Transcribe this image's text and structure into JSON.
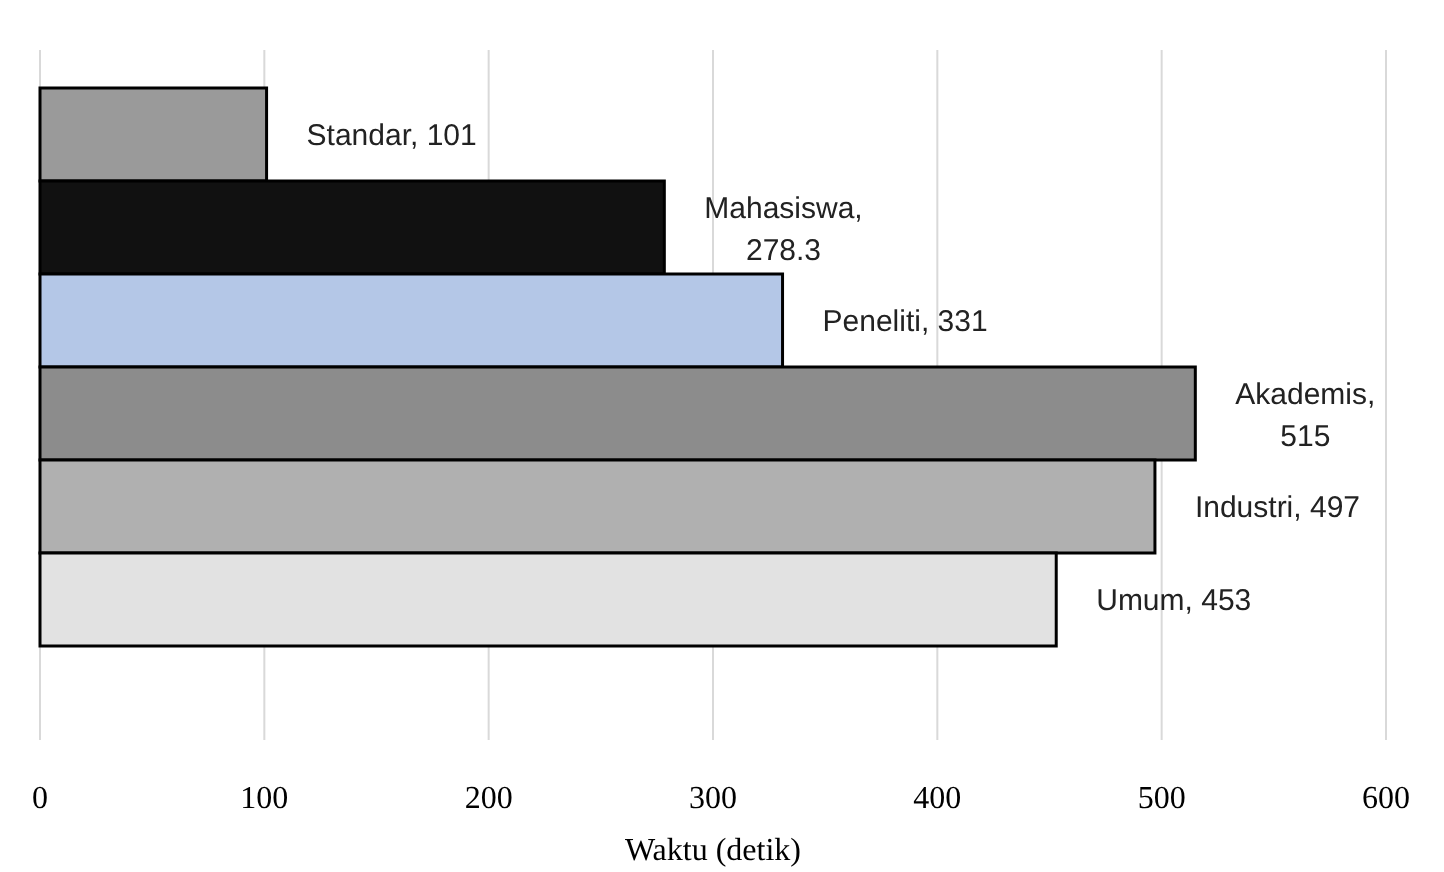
{
  "chart_data": {
    "type": "bar",
    "orientation": "horizontal",
    "xlabel": "Waktu (detik)",
    "categories": [
      null,
      null,
      null,
      null,
      null,
      null
    ],
    "values": [
      101,
      278.3,
      331,
      515,
      497,
      453
    ],
    "value_labels": [
      "Standar, 101",
      "Mahasiswa, 278.3",
      "Peneliti, 331",
      "Akademis, 515",
      "Industri, 497",
      "Umum, 453"
    ],
    "colors": [
      "#9a9a9a",
      "#111111",
      "#b4c7e7",
      "#8c8c8c",
      "#b0b0b0",
      "#e2e2e2"
    ],
    "xlim": [
      0,
      600
    ],
    "xticks": [
      0,
      100,
      200,
      300,
      400,
      500,
      600
    ],
    "grid": "x",
    "tick_labels": "x"
  }
}
